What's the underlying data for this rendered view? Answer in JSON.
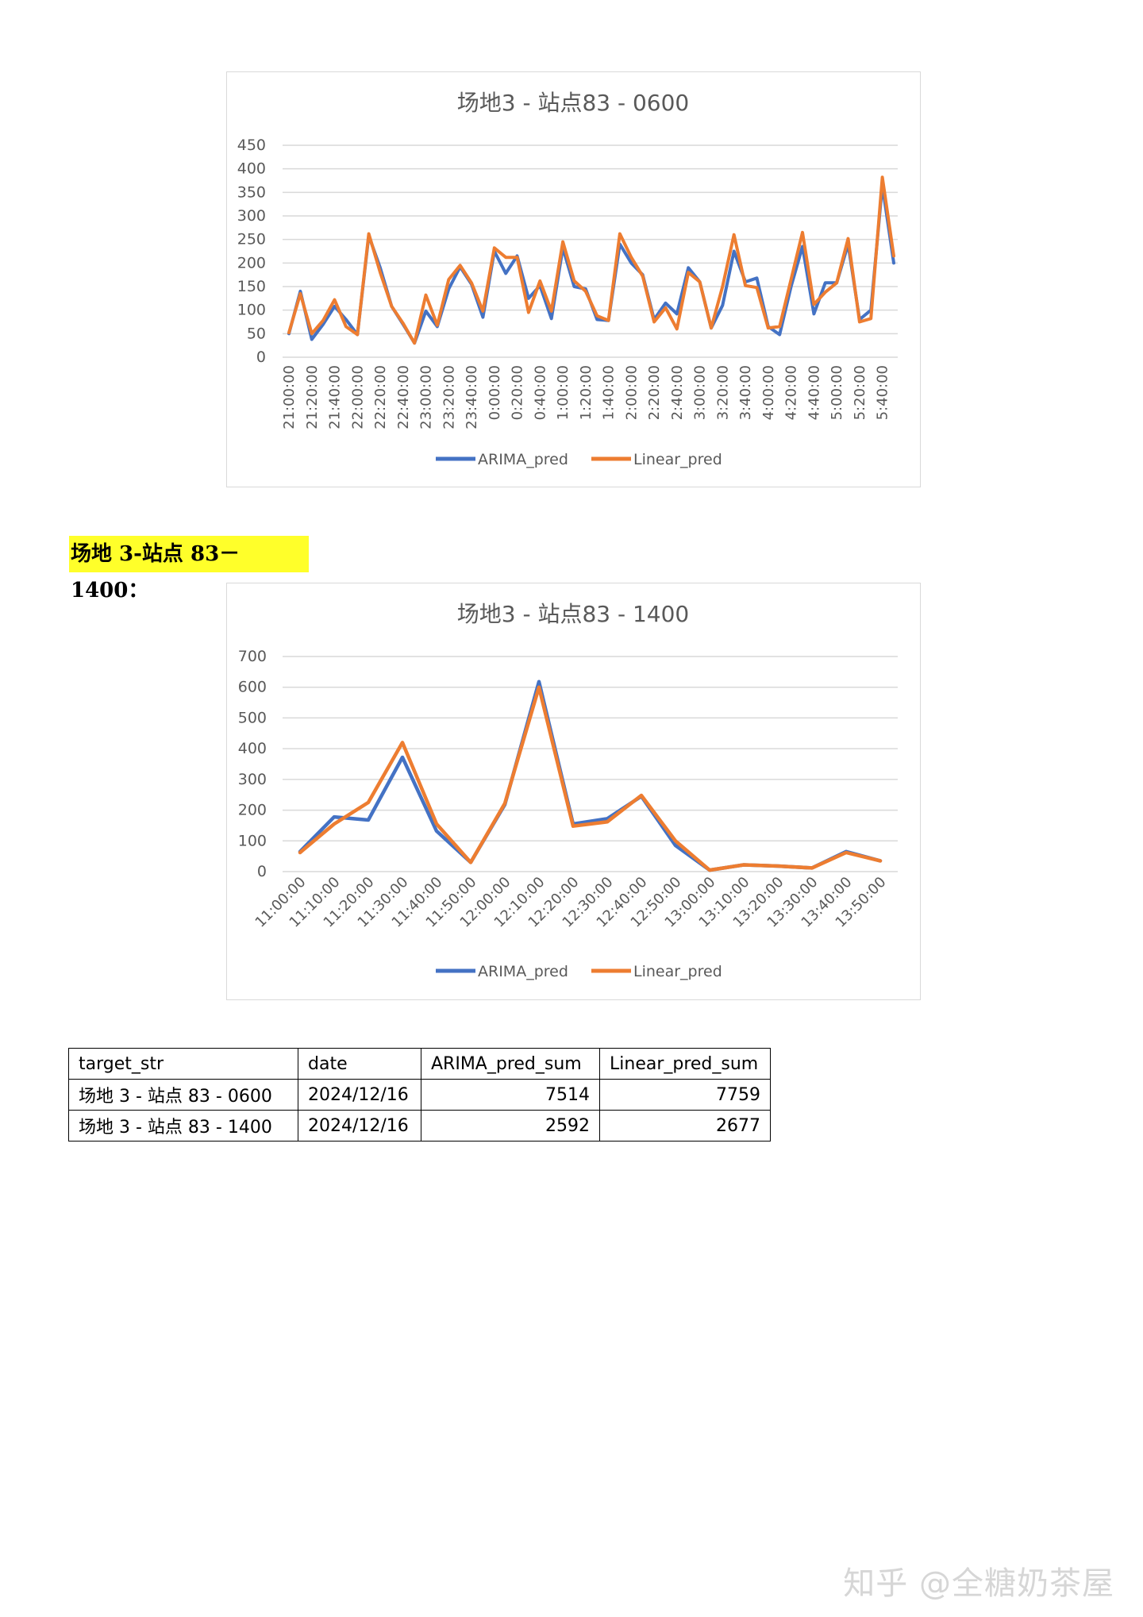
{
  "chart_data": [
    {
      "type": "line",
      "title": "场地3 - 站点83 - 0600",
      "xlabel": "",
      "ylabel": "",
      "ylim": [
        0,
        450
      ],
      "yticks": [
        0,
        50,
        100,
        150,
        200,
        250,
        300,
        350,
        400,
        450
      ],
      "grid": true,
      "legend": "bottom",
      "x": [
        "21:00:00",
        "21:10:00",
        "21:20:00",
        "21:30:00",
        "21:40:00",
        "21:50:00",
        "22:00:00",
        "22:10:00",
        "22:20:00",
        "22:30:00",
        "22:40:00",
        "22:50:00",
        "23:00:00",
        "23:10:00",
        "23:20:00",
        "23:30:00",
        "23:40:00",
        "23:50:00",
        "0:00:00",
        "0:10:00",
        "0:20:00",
        "0:30:00",
        "0:40:00",
        "0:50:00",
        "1:00:00",
        "1:10:00",
        "1:20:00",
        "1:30:00",
        "1:40:00",
        "1:50:00",
        "2:00:00",
        "2:10:00",
        "2:20:00",
        "2:30:00",
        "2:40:00",
        "2:50:00",
        "3:00:00",
        "3:10:00",
        "3:20:00",
        "3:30:00",
        "3:40:00",
        "3:50:00",
        "4:00:00",
        "4:10:00",
        "4:20:00",
        "4:30:00",
        "4:40:00",
        "4:50:00",
        "5:00:00",
        "5:10:00",
        "5:20:00",
        "5:30:00",
        "5:40:00",
        "5:50:00"
      ],
      "xtick_labels": [
        "21:00:00",
        "21:20:00",
        "21:40:00",
        "22:00:00",
        "22:20:00",
        "22:40:00",
        "23:00:00",
        "23:20:00",
        "23:40:00",
        "0:00:00",
        "0:20:00",
        "0:40:00",
        "1:00:00",
        "1:20:00",
        "1:40:00",
        "2:00:00",
        "2:20:00",
        "2:40:00",
        "3:00:00",
        "3:20:00",
        "3:40:00",
        "4:00:00",
        "4:20:00",
        "4:40:00",
        "5:00:00",
        "5:20:00",
        "5:40:00"
      ],
      "series": [
        {
          "name": "ARIMA_pred",
          "color": "#4472c4",
          "values": [
            50,
            140,
            38,
            70,
            108,
            80,
            48,
            258,
            190,
            108,
            70,
            30,
            98,
            65,
            145,
            192,
            155,
            85,
            225,
            178,
            215,
            125,
            152,
            82,
            232,
            150,
            145,
            80,
            78,
            240,
            200,
            175,
            80,
            115,
            92,
            190,
            160,
            62,
            110,
            225,
            160,
            168,
            65,
            48,
            150,
            235,
            92,
            158,
            158,
            240,
            80,
            100,
            365,
            200
          ]
        },
        {
          "name": "Linear_pred",
          "color": "#ed7d31",
          "values": [
            52,
            135,
            50,
            78,
            122,
            65,
            48,
            262,
            180,
            108,
            72,
            30,
            132,
            68,
            165,
            195,
            158,
            98,
            232,
            212,
            212,
            95,
            162,
            98,
            245,
            162,
            140,
            88,
            78,
            262,
            212,
            172,
            75,
            105,
            60,
            180,
            160,
            62,
            150,
            260,
            152,
            148,
            62,
            65,
            165,
            265,
            112,
            138,
            158,
            252,
            75,
            82,
            382,
            215
          ]
        }
      ]
    },
    {
      "type": "line",
      "title": "场地3 - 站点83 - 1400",
      "xlabel": "",
      "ylabel": "",
      "ylim": [
        0,
        700
      ],
      "yticks": [
        0,
        100,
        200,
        300,
        400,
        500,
        600,
        700
      ],
      "grid": true,
      "legend": "bottom",
      "x": [
        "11:00:00",
        "11:10:00",
        "11:20:00",
        "11:30:00",
        "11:40:00",
        "11:50:00",
        "12:00:00",
        "12:10:00",
        "12:20:00",
        "12:30:00",
        "12:40:00",
        "12:50:00",
        "13:00:00",
        "13:10:00",
        "13:20:00",
        "13:30:00",
        "13:40:00",
        "13:50:00"
      ],
      "xtick_labels": [
        "11:00:00",
        "11:10:00",
        "11:20:00",
        "11:30:00",
        "11:40:00",
        "11:50:00",
        "12:00:00",
        "12:10:00",
        "12:20:00",
        "12:30:00",
        "12:40:00",
        "12:50:00",
        "13:00:00",
        "13:10:00",
        "13:20:00",
        "13:30:00",
        "13:40:00",
        "13:50:00"
      ],
      "series": [
        {
          "name": "ARIMA_pred",
          "color": "#4472c4",
          "values": [
            65,
            178,
            168,
            372,
            132,
            30,
            218,
            618,
            155,
            172,
            245,
            85,
            5,
            22,
            18,
            12,
            65,
            35
          ]
        },
        {
          "name": "Linear_pred",
          "color": "#ed7d31",
          "values": [
            62,
            155,
            225,
            420,
            155,
            30,
            222,
            600,
            148,
            162,
            248,
            100,
            5,
            22,
            18,
            12,
            62,
            35
          ]
        }
      ]
    }
  ],
  "section_heading": "场地 3-站点 83－1400：",
  "summary_table": {
    "headers": [
      "target_str",
      "date",
      "ARIMA_pred_sum",
      "Linear_pred_sum"
    ],
    "rows": [
      [
        "场地 3 -  站点 83 - 0600",
        "2024/12/16",
        "7514",
        "7759"
      ],
      [
        "场地 3 -  站点 83 - 1400",
        "2024/12/16",
        "2592",
        "2677"
      ]
    ]
  },
  "watermark": "知乎 @全糖奶茶屋"
}
